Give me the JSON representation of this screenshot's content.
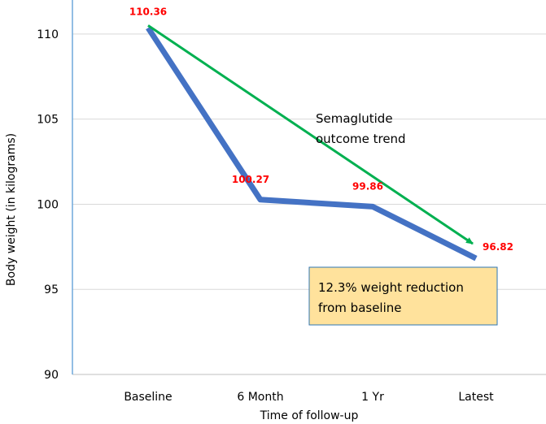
{
  "chart_data": {
    "type": "line",
    "categories": [
      "Baseline",
      "6 Month",
      "1 Yr",
      "Latest"
    ],
    "series": [
      {
        "values": [
          110.36,
          100.27,
          99.86,
          96.82
        ],
        "color": "#4472c4"
      }
    ],
    "data_labels": [
      "110.36",
      "100.27",
      "99.86",
      "96.82"
    ],
    "data_label_color": "#ff0000",
    "xlabel": "Time of follow-up",
    "ylabel": "Body weight (in kilograms)",
    "ylim": [
      90,
      112
    ],
    "yticks": [
      90,
      95,
      100,
      105,
      110
    ],
    "grid": true,
    "trend_arrow": {
      "from_category": "Baseline",
      "from_value": 110.5,
      "to_category": "Latest",
      "to_value": 97.3,
      "color": "#00b050",
      "label_lines": [
        "Semaglutide",
        "outcome trend"
      ]
    },
    "annotation_box": {
      "lines": [
        "12.3% weight reduction",
        "from baseline"
      ],
      "fill": "#ffe29c",
      "border": "#2e75b6"
    },
    "axis_color": "#6fa8dc",
    "grid_color": "#d9d9d9"
  }
}
